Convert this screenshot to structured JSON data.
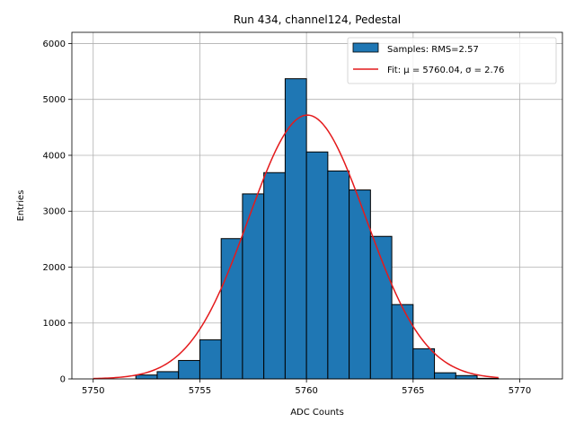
{
  "chart_data": {
    "type": "bar",
    "title": "Run 434, channel124, Pedestal",
    "xlabel": "ADC Counts",
    "ylabel": "Entries",
    "xlim": [
      5749,
      5772
    ],
    "ylim": [
      0,
      6200
    ],
    "xticks": [
      5750,
      5755,
      5760,
      5765,
      5770
    ],
    "yticks": [
      0,
      1000,
      2000,
      3000,
      4000,
      5000,
      6000
    ],
    "grid": true,
    "legend_position": "top-right",
    "bin_width": 1,
    "bins": [
      {
        "x": 5752,
        "value": 70
      },
      {
        "x": 5753,
        "value": 130
      },
      {
        "x": 5754,
        "value": 330
      },
      {
        "x": 5755,
        "value": 700
      },
      {
        "x": 5756,
        "value": 2510
      },
      {
        "x": 5757,
        "value": 3310
      },
      {
        "x": 5758,
        "value": 3690
      },
      {
        "x": 5759,
        "value": 5370
      },
      {
        "x": 5760,
        "value": 4060
      },
      {
        "x": 5761,
        "value": 3720
      },
      {
        "x": 5762,
        "value": 3380
      },
      {
        "x": 5763,
        "value": 2550
      },
      {
        "x": 5764,
        "value": 1330
      },
      {
        "x": 5765,
        "value": 540
      },
      {
        "x": 5766,
        "value": 110
      },
      {
        "x": 5767,
        "value": 60
      },
      {
        "x": 5768,
        "value": 10
      }
    ],
    "fit": {
      "mu": 5760.04,
      "sigma": 2.76,
      "peak": 4720,
      "x_range": [
        5750,
        5769
      ]
    },
    "series": [
      {
        "name": "Samples: RMS=2.57",
        "kind": "histogram",
        "color": "#1f77b4"
      },
      {
        "name": "Fit: μ = 5760.04, σ = 2.76",
        "kind": "line",
        "color": "#e41a1c"
      }
    ]
  }
}
